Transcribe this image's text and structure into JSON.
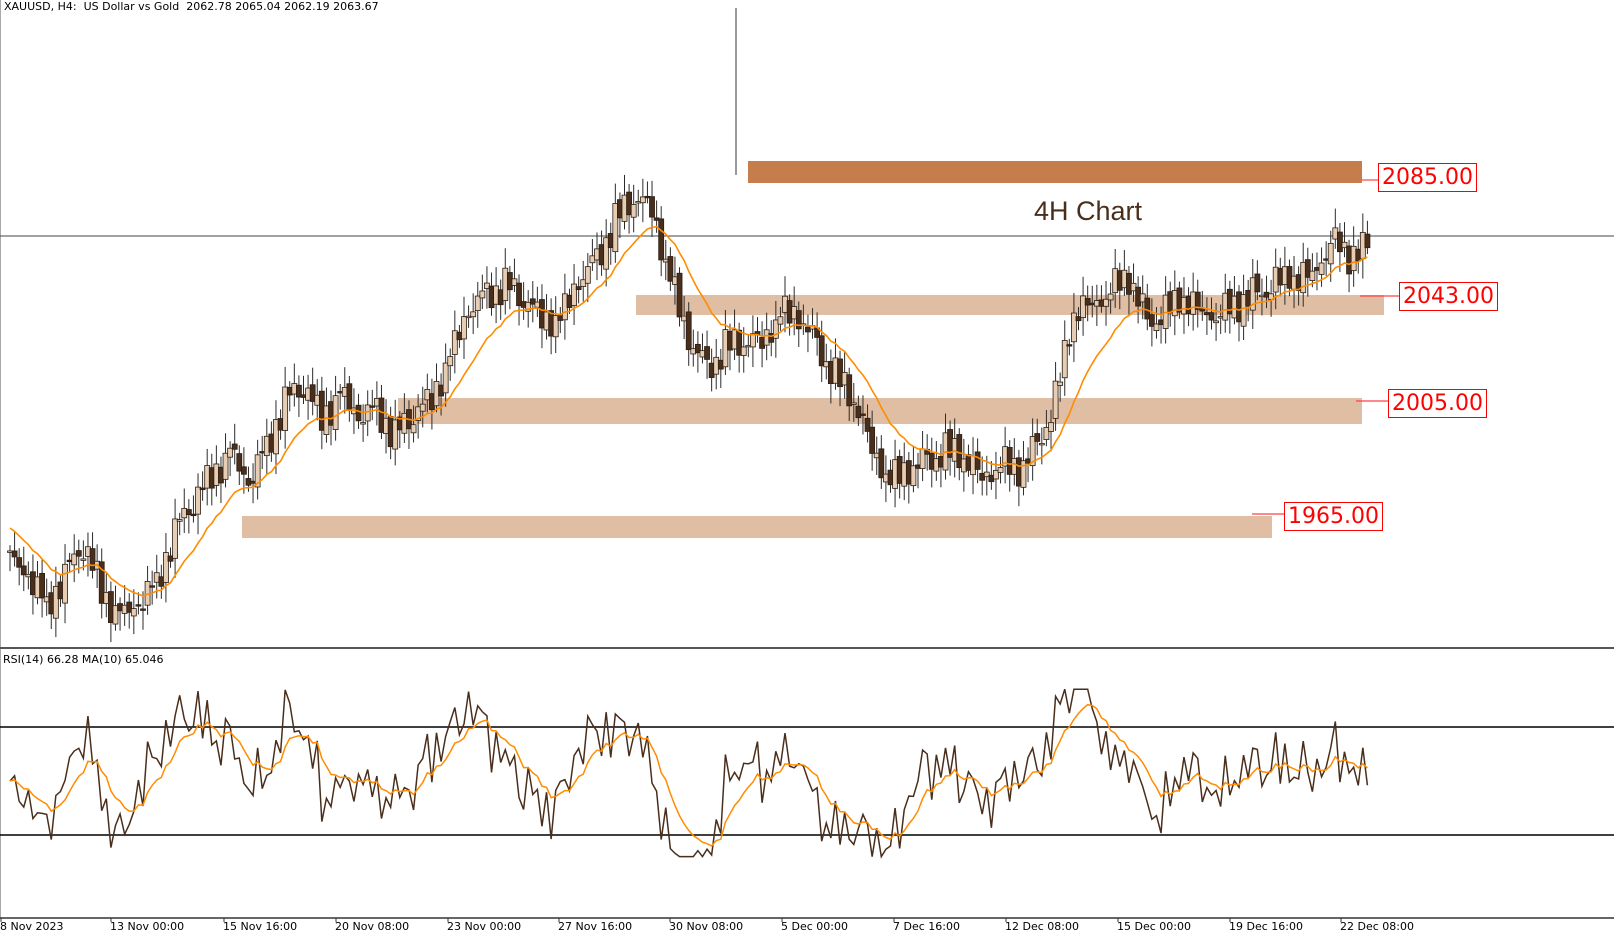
{
  "header": {
    "symbol_line": "XAUUSD, H4:  US Dollar vs Gold  2062.78 2065.04 2062.19 2063.67"
  },
  "rsi_panel": {
    "label": "RSI(14) 66.28 MA(10) 65.046"
  },
  "annotation": {
    "title": "4H Chart"
  },
  "levels": [
    {
      "label": "2085.00",
      "value": 2085.0
    },
    {
      "label": "2043.00",
      "value": 2043.0
    },
    {
      "label": "2005.00",
      "value": 2005.0
    },
    {
      "label": "1965.00",
      "value": 1965.0
    }
  ],
  "x_axis": {
    "ticks": [
      "8 Nov 2023",
      "13 Nov 00:00",
      "15 Nov 16:00",
      "20 Nov 08:00",
      "23 Nov 00:00",
      "27 Nov 16:00",
      "30 Nov 08:00",
      "5 Dec 00:00",
      "7 Dec 16:00",
      "12 Dec 08:00",
      "15 Dec 00:00",
      "19 Dec 16:00",
      "22 Dec 08:00"
    ]
  },
  "colors": {
    "bull_body": "#e6cdb3",
    "bear_body": "#4a2e1c",
    "wick": "#2b2b2b",
    "ma_line": "#ff8c00",
    "rsi_line": "#4a2e1c",
    "zone_light": "#e0bea4",
    "zone_dark": "#c57d4c",
    "level_label": "#ff0000"
  },
  "chart_data": [
    {
      "type": "candlestick",
      "title": "XAUUSD, H4: US Dollar vs Gold",
      "subtitle": "4H Chart",
      "last_ohlc": {
        "open": 2062.78,
        "high": 2065.04,
        "low": 2062.19,
        "close": 2063.67
      },
      "x_ticks": [
        "8 Nov 2023",
        "13 Nov 00:00",
        "15 Nov 16:00",
        "20 Nov 08:00",
        "23 Nov 00:00",
        "27 Nov 16:00",
        "30 Nov 08:00",
        "5 Dec 00:00",
        "7 Dec 16:00",
        "12 Dec 08:00",
        "15 Dec 00:00",
        "19 Dec 16:00",
        "22 Dec 08:00"
      ],
      "horizontal_zones": [
        {
          "label": "2085.00",
          "value": 2085.0,
          "style": "dark"
        },
        {
          "label": "2043.00",
          "value": 2043.0,
          "style": "light"
        },
        {
          "label": "2005.00",
          "value": 2005.0,
          "style": "light"
        },
        {
          "label": "1965.00",
          "value": 1965.0,
          "style": "light"
        }
      ],
      "current_price_line": 2063.67,
      "approx_range": {
        "low": 1932,
        "high": 2146
      },
      "close_path_approx": [
        1955,
        1948,
        1940,
        1950,
        1960,
        1945,
        1935,
        1938,
        1948,
        1965,
        1975,
        1985,
        1992,
        1980,
        1995,
        2010,
        2015,
        2005,
        2012,
        2003,
        2008,
        1998,
        2005,
        2012,
        2025,
        2040,
        2048,
        2050,
        2045,
        2040,
        2038,
        2050,
        2060,
        2072,
        2080,
        2078,
        2052,
        2030,
        2022,
        2028,
        2030,
        2032,
        2040,
        2038,
        2030,
        2018,
        2010,
        1995,
        1982,
        1985,
        1990,
        1992,
        1990,
        1985,
        1988,
        1985,
        1995,
        2010,
        2040,
        2045,
        2048,
        2052,
        2038,
        2040,
        2045,
        2042,
        2040,
        2043,
        2048,
        2050,
        2052,
        2055,
        2065,
        2060,
        2063
      ],
      "indicator": {
        "name": "MA",
        "color": "#ff8c00"
      }
    },
    {
      "type": "line",
      "title": "RSI(14) 66.28 MA(10) 65.046",
      "series": [
        {
          "name": "RSI(14)",
          "last": 66.28
        },
        {
          "name": "MA(10)",
          "last": 65.046
        }
      ],
      "levels": [
        70,
        30
      ]
    }
  ]
}
